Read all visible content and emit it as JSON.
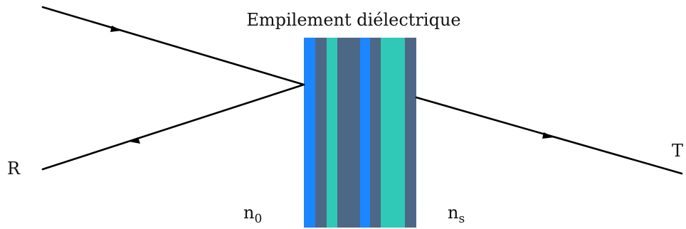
{
  "title": "Empilement diélectrique",
  "labels": {
    "reflected": "R",
    "transmitted": "T",
    "n0_base": "n",
    "n0_sub": "0",
    "ns_base": "n",
    "ns_sub": "s"
  },
  "colors": {
    "ray": "#000000",
    "layer_blue": "#1b86ff",
    "layer_slate": "#4d6887",
    "layer_teal": "#30c8b6"
  },
  "layers": [
    {
      "name": "layer-1",
      "color": "#1b86ff"
    },
    {
      "name": "layer-2",
      "color": "#4d6887"
    },
    {
      "name": "layer-3",
      "color": "#30c8b6"
    },
    {
      "name": "layer-4",
      "color": "#4d6887"
    },
    {
      "name": "layer-5",
      "color": "#1b86ff"
    },
    {
      "name": "layer-6",
      "color": "#4d6887"
    },
    {
      "name": "layer-7",
      "color": "#30c8b6"
    },
    {
      "name": "layer-8",
      "color": "#4d6887"
    }
  ]
}
